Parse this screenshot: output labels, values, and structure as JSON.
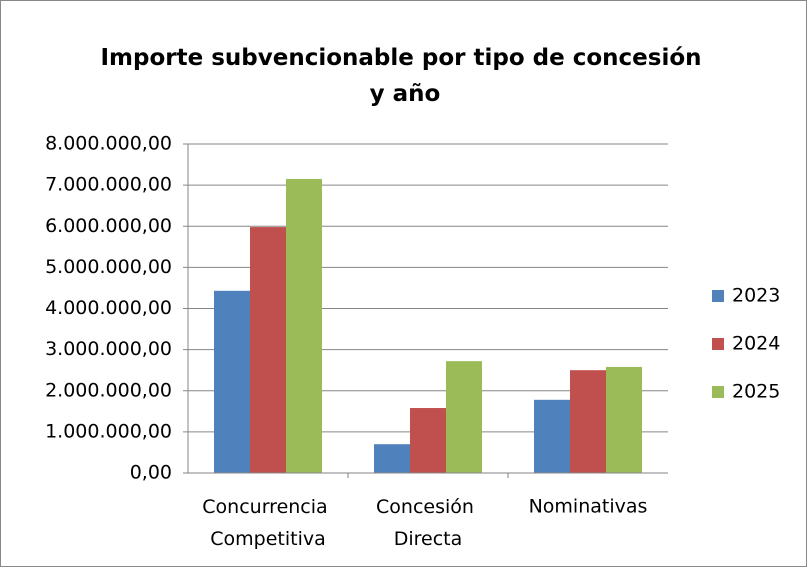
{
  "chart_data": {
    "type": "bar",
    "title": "Importe subvencionable por tipo de concesión y año",
    "categories": [
      "Concurrencia Competitiva",
      "Concesión Directa",
      "Nominativas"
    ],
    "series": [
      {
        "name": "2023",
        "color": "#4f81bd",
        "values": [
          4430000,
          700000,
          1780000
        ]
      },
      {
        "name": "2024",
        "color": "#c0504d",
        "values": [
          5980000,
          1580000,
          2500000
        ]
      },
      {
        "name": "2025",
        "color": "#9bbb59",
        "values": [
          7150000,
          2720000,
          2580000
        ]
      }
    ],
    "ylim": [
      0,
      8000000
    ],
    "yticks": [
      {
        "value": 0,
        "label": "0,00"
      },
      {
        "value": 1000000,
        "label": "1.000.000,00"
      },
      {
        "value": 2000000,
        "label": "2.000.000,00"
      },
      {
        "value": 3000000,
        "label": "3.000.000,00"
      },
      {
        "value": 4000000,
        "label": "4.000.000,00"
      },
      {
        "value": 5000000,
        "label": "5.000.000,00"
      },
      {
        "value": 6000000,
        "label": "6.000.000,00"
      },
      {
        "value": 7000000,
        "label": "7.000.000,00"
      },
      {
        "value": 8000000,
        "label": "8.000.000,00"
      }
    ],
    "grid": true,
    "legend": "right"
  }
}
